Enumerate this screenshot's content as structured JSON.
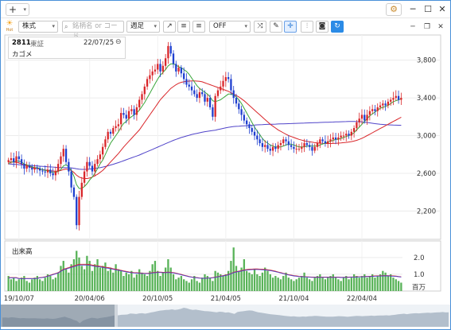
{
  "titlebar": {
    "add_label": "+",
    "settings_icon": "gear-icon",
    "minimize_icon": "minimize-icon",
    "maximize_icon": "maximize-icon",
    "close_icon": "close-icon"
  },
  "toolbar": {
    "logo_text": "Hot",
    "market_type": "株式",
    "search_placeholder": "銘柄名 or コード",
    "period": "週足",
    "indicator": "OFF"
  },
  "info": {
    "code": "2811",
    "market": "東証",
    "date": "22/07/25",
    "name": "カゴメ"
  },
  "price_axis": {
    "labels": [
      "3,800",
      "3,400",
      "3,000",
      "2,600",
      "2,200"
    ]
  },
  "volume_panel": {
    "label": "出来高",
    "axis_labels": [
      "2.0",
      "1.0"
    ],
    "unit": "百万"
  },
  "date_axis": {
    "labels": [
      "19/10/07",
      "20/04/06",
      "20/10/05",
      "21/04/05",
      "21/10/04",
      "22/04/04"
    ]
  },
  "colors": {
    "up": "#d9262a",
    "down": "#1f3fcf",
    "ma_short": "#3aa63a",
    "ma_mid": "#d9262a",
    "ma_long": "#5044c9",
    "volume": "#59b359"
  },
  "chart_data": {
    "type": "candlestick",
    "title": "",
    "ylim": [
      1900,
      4050
    ],
    "y_ticks": [
      2200,
      2600,
      3000,
      3400,
      3800
    ],
    "close": [
      2740,
      2760,
      2720,
      2780,
      2750,
      2700,
      2650,
      2680,
      2660,
      2640,
      2660,
      2650,
      2630,
      2620,
      2610,
      2640,
      2600,
      2580,
      2620,
      2700,
      2780,
      2860,
      2720,
      2620,
      2450,
      2350,
      2050,
      2350,
      2500,
      2620,
      2720,
      2680,
      2620,
      2700,
      2750,
      2800,
      2880,
      2960,
      3040,
      3020,
      3080,
      3100,
      3120,
      3240,
      3220,
      3180,
      3260,
      3280,
      3220,
      3300,
      3380,
      3440,
      3520,
      3600,
      3640,
      3680,
      3700,
      3760,
      3680,
      3740,
      3820,
      3950,
      3870,
      3760,
      3680,
      3720,
      3660,
      3600,
      3540,
      3520,
      3480,
      3440,
      3400,
      3460,
      3440,
      3360,
      3400,
      3300,
      3200,
      3420,
      3480,
      3520,
      3580,
      3620,
      3600,
      3480,
      3400,
      3340,
      3280,
      3220,
      3160,
      3120,
      3080,
      3040,
      3000,
      2960,
      2920,
      2880,
      2900,
      2860,
      2840,
      2880,
      2860,
      2900,
      2920,
      2960,
      2940,
      2900,
      2880,
      2860,
      2860,
      2860,
      2880,
      2920,
      2900,
      2880,
      2840,
      2880,
      2920,
      2960,
      2940,
      2920,
      2940,
      2960,
      2980,
      2960,
      2980,
      3000,
      3000,
      3020,
      3000,
      3040,
      3080,
      3140,
      3180,
      3220,
      3160,
      3220,
      3260,
      3280,
      3260,
      3300,
      3320,
      3340,
      3320,
      3360,
      3380,
      3400,
      3420,
      3380,
      3400
    ],
    "ma_short": [
      2700,
      2720,
      2720,
      2730,
      2730,
      2720,
      2700,
      2690,
      2680,
      2670,
      2660,
      2660,
      2650,
      2640,
      2630,
      2630,
      2620,
      2610,
      2610,
      2620,
      2640,
      2680,
      2690,
      2670,
      2630,
      2570,
      2480,
      2440,
      2440,
      2460,
      2490,
      2530,
      2560,
      2600,
      2650,
      2700,
      2740,
      2800,
      2860,
      2920,
      2960,
      3000,
      3040,
      3090,
      3130,
      3150,
      3180,
      3200,
      3220,
      3240,
      3270,
      3310,
      3350,
      3400,
      3450,
      3500,
      3550,
      3600,
      3640,
      3670,
      3700,
      3740,
      3760,
      3760,
      3750,
      3730,
      3720,
      3700,
      3680,
      3650,
      3610,
      3570,
      3530,
      3500,
      3480,
      3460,
      3440,
      3410,
      3370,
      3360,
      3370,
      3380,
      3400,
      3420,
      3440,
      3440,
      3430,
      3410,
      3380,
      3340,
      3290,
      3240,
      3190,
      3140,
      3090,
      3050,
      3010,
      2970,
      2940,
      2920,
      2900,
      2890,
      2880,
      2880,
      2880,
      2890,
      2900,
      2910,
      2910,
      2900,
      2890,
      2880,
      2880,
      2880,
      2890,
      2890,
      2890,
      2890,
      2890,
      2900,
      2910,
      2920,
      2930,
      2940,
      2950,
      2960,
      2960,
      2970,
      2980,
      2990,
      3000,
      3010,
      3030,
      3060,
      3090,
      3120,
      3150,
      3180,
      3210,
      3230,
      3250,
      3270,
      3290,
      3300,
      3310,
      3320,
      3340,
      3360,
      3370,
      3380,
      3390
    ],
    "ma_mid": [
      2720,
      2720,
      2720,
      2715,
      2710,
      2700,
      2690,
      2680,
      2670,
      2660,
      2655,
      2650,
      2645,
      2640,
      2635,
      2630,
      2628,
      2625,
      2622,
      2625,
      2630,
      2640,
      2645,
      2640,
      2630,
      2610,
      2580,
      2560,
      2550,
      2545,
      2545,
      2550,
      2560,
      2575,
      2590,
      2610,
      2630,
      2660,
      2690,
      2720,
      2750,
      2780,
      2810,
      2845,
      2880,
      2910,
      2940,
      2970,
      3000,
      3030,
      3060,
      3100,
      3140,
      3180,
      3220,
      3260,
      3300,
      3340,
      3380,
      3410,
      3440,
      3470,
      3500,
      3520,
      3540,
      3555,
      3565,
      3570,
      3575,
      3578,
      3580,
      3580,
      3578,
      3575,
      3570,
      3560,
      3550,
      3540,
      3530,
      3520,
      3510,
      3500,
      3490,
      3480,
      3470,
      3455,
      3440,
      3425,
      3410,
      3390,
      3370,
      3345,
      3320,
      3295,
      3270,
      3245,
      3220,
      3195,
      3170,
      3145,
      3120,
      3100,
      3080,
      3060,
      3045,
      3030,
      3015,
      3000,
      2990,
      2980,
      2970,
      2960,
      2952,
      2945,
      2940,
      2935,
      2930,
      2925,
      2922,
      2920,
      2918,
      2917,
      2916,
      2916,
      2917,
      2918,
      2920,
      2922,
      2925,
      2928,
      2932,
      2936,
      2942,
      2950,
      2960,
      2972,
      2985,
      3000,
      3015,
      3030,
      3045,
      3060,
      3075,
      3090,
      3105,
      3120,
      3135,
      3150,
      3165,
      3180,
      3195
    ],
    "ma_long": [
      2700,
      2698,
      2696,
      2694,
      2692,
      2690,
      2688,
      2686,
      2684,
      2682,
      2680,
      2678,
      2676,
      2674,
      2672,
      2670,
      2668,
      2666,
      2664,
      2662,
      2660,
      2660,
      2660,
      2660,
      2658,
      2654,
      2648,
      2644,
      2642,
      2642,
      2643,
      2645,
      2648,
      2652,
      2656,
      2660,
      2666,
      2672,
      2680,
      2688,
      2696,
      2705,
      2714,
      2724,
      2734,
      2744,
      2754,
      2764,
      2774,
      2784,
      2794,
      2806,
      2818,
      2830,
      2842,
      2854,
      2866,
      2878,
      2890,
      2902,
      2914,
      2926,
      2938,
      2950,
      2960,
      2970,
      2980,
      2988,
      2996,
      3004,
      3012,
      3018,
      3024,
      3030,
      3036,
      3042,
      3046,
      3050,
      3054,
      3058,
      3064,
      3070,
      3076,
      3082,
      3088,
      3092,
      3096,
      3098,
      3100,
      3102,
      3104,
      3106,
      3108,
      3110,
      3112,
      3114,
      3115,
      3116,
      3118,
      3119,
      3120,
      3121,
      3122,
      3123,
      3124,
      3125,
      3126,
      3127,
      3128,
      3129,
      3130,
      3131,
      3132,
      3133,
      3134,
      3135,
      3136,
      3137,
      3138,
      3139,
      3140,
      3141,
      3142,
      3143,
      3144,
      3145,
      3146,
      3147,
      3148,
      3149,
      3150,
      3150,
      3150,
      3149,
      3148,
      3146,
      3143,
      3139,
      3135,
      3131,
      3127,
      3123,
      3120,
      3118,
      3116,
      3114,
      3113,
      3112,
      3111,
      3110,
      3110
    ],
    "volume": [
      0.9,
      0.7,
      0.8,
      0.6,
      0.7,
      0.8,
      0.9,
      0.6,
      0.5,
      0.7,
      0.8,
      0.9,
      0.7,
      0.6,
      0.8,
      1.0,
      0.9,
      0.7,
      0.8,
      1.1,
      1.5,
      1.8,
      1.3,
      1.1,
      1.6,
      1.9,
      2.4,
      2.0,
      1.5,
      1.3,
      2.1,
      1.8,
      1.2,
      1.6,
      1.9,
      1.4,
      1.5,
      1.7,
      1.2,
      1.4,
      1.1,
      1.6,
      1.3,
      1.2,
      0.9,
      1.1,
      1.0,
      1.2,
      0.8,
      1.0,
      1.3,
      1.1,
      1.0,
      0.9,
      1.2,
      1.6,
      1.8,
      1.2,
      0.9,
      1.1,
      1.4,
      1.9,
      1.4,
      1.0,
      0.7,
      0.8,
      0.9,
      0.7,
      0.6,
      0.5,
      0.7,
      0.9,
      0.6,
      0.5,
      0.8,
      1.0,
      0.9,
      0.8,
      0.6,
      1.2,
      1.1,
      1.0,
      0.9,
      1.0,
      1.2,
      1.8,
      2.6,
      1.5,
      1.2,
      1.4,
      1.9,
      1.2,
      1.1,
      1.0,
      1.3,
      1.0,
      0.9,
      1.1,
      1.4,
      1.2,
      1.0,
      0.8,
      0.9,
      0.8,
      0.7,
      0.9,
      1.1,
      0.8,
      0.7,
      0.6,
      0.7,
      0.8,
      0.9,
      1.1,
      0.8,
      0.7,
      0.6,
      0.8,
      0.9,
      1.0,
      0.8,
      0.7,
      0.8,
      0.9,
      1.0,
      0.8,
      0.7,
      0.6,
      0.8,
      0.9,
      0.7,
      0.8,
      1.0,
      0.9,
      0.8,
      0.9,
      1.0,
      0.8,
      0.9,
      1.0,
      0.8,
      0.9,
      1.0,
      1.2,
      1.1,
      0.9,
      1.0,
      0.8,
      0.7,
      0.6,
      0.5
    ],
    "volume_ylim": [
      0,
      2.8
    ],
    "volume_ma": [
      0.8,
      0.8,
      0.8,
      0.8,
      0.75,
      0.75,
      0.75,
      0.75,
      0.75,
      0.75,
      0.75,
      0.77,
      0.8,
      0.82,
      0.85,
      0.9,
      0.95,
      1.0,
      1.05,
      1.1,
      1.2,
      1.3,
      1.35,
      1.4,
      1.45,
      1.5,
      1.55,
      1.6,
      1.6,
      1.6,
      1.6,
      1.58,
      1.55,
      1.52,
      1.5,
      1.48,
      1.45,
      1.42,
      1.4,
      1.37,
      1.33,
      1.3,
      1.27,
      1.24,
      1.2,
      1.17,
      1.14,
      1.12,
      1.1,
      1.09,
      1.08,
      1.07,
      1.06,
      1.06,
      1.07,
      1.1,
      1.12,
      1.13,
      1.13,
      1.12,
      1.12,
      1.13,
      1.12,
      1.1,
      1.07,
      1.03,
      0.99,
      0.95,
      0.91,
      0.87,
      0.84,
      0.82,
      0.8,
      0.78,
      0.77,
      0.77,
      0.78,
      0.79,
      0.8,
      0.83,
      0.86,
      0.89,
      0.92,
      0.95,
      0.99,
      1.05,
      1.12,
      1.16,
      1.19,
      1.22,
      1.26,
      1.28,
      1.3,
      1.31,
      1.32,
      1.32,
      1.31,
      1.3,
      1.29,
      1.27,
      1.25,
      1.22,
      1.18,
      1.14,
      1.1,
      1.06,
      1.02,
      0.98,
      0.95,
      0.92,
      0.9,
      0.88,
      0.87,
      0.86,
      0.85,
      0.84,
      0.83,
      0.83,
      0.83,
      0.83,
      0.83,
      0.83,
      0.83,
      0.83,
      0.83,
      0.83,
      0.83,
      0.82,
      0.82,
      0.83,
      0.83,
      0.84,
      0.84,
      0.85,
      0.86,
      0.86,
      0.87,
      0.88,
      0.88,
      0.89,
      0.9,
      0.91,
      0.91,
      0.92,
      0.92,
      0.92,
      0.91,
      0.9,
      0.89,
      0.87,
      0.85
    ],
    "date_labels": [
      "19/10/07",
      "20/04/06",
      "20/10/05",
      "21/04/05",
      "21/10/04",
      "22/04/04"
    ]
  }
}
